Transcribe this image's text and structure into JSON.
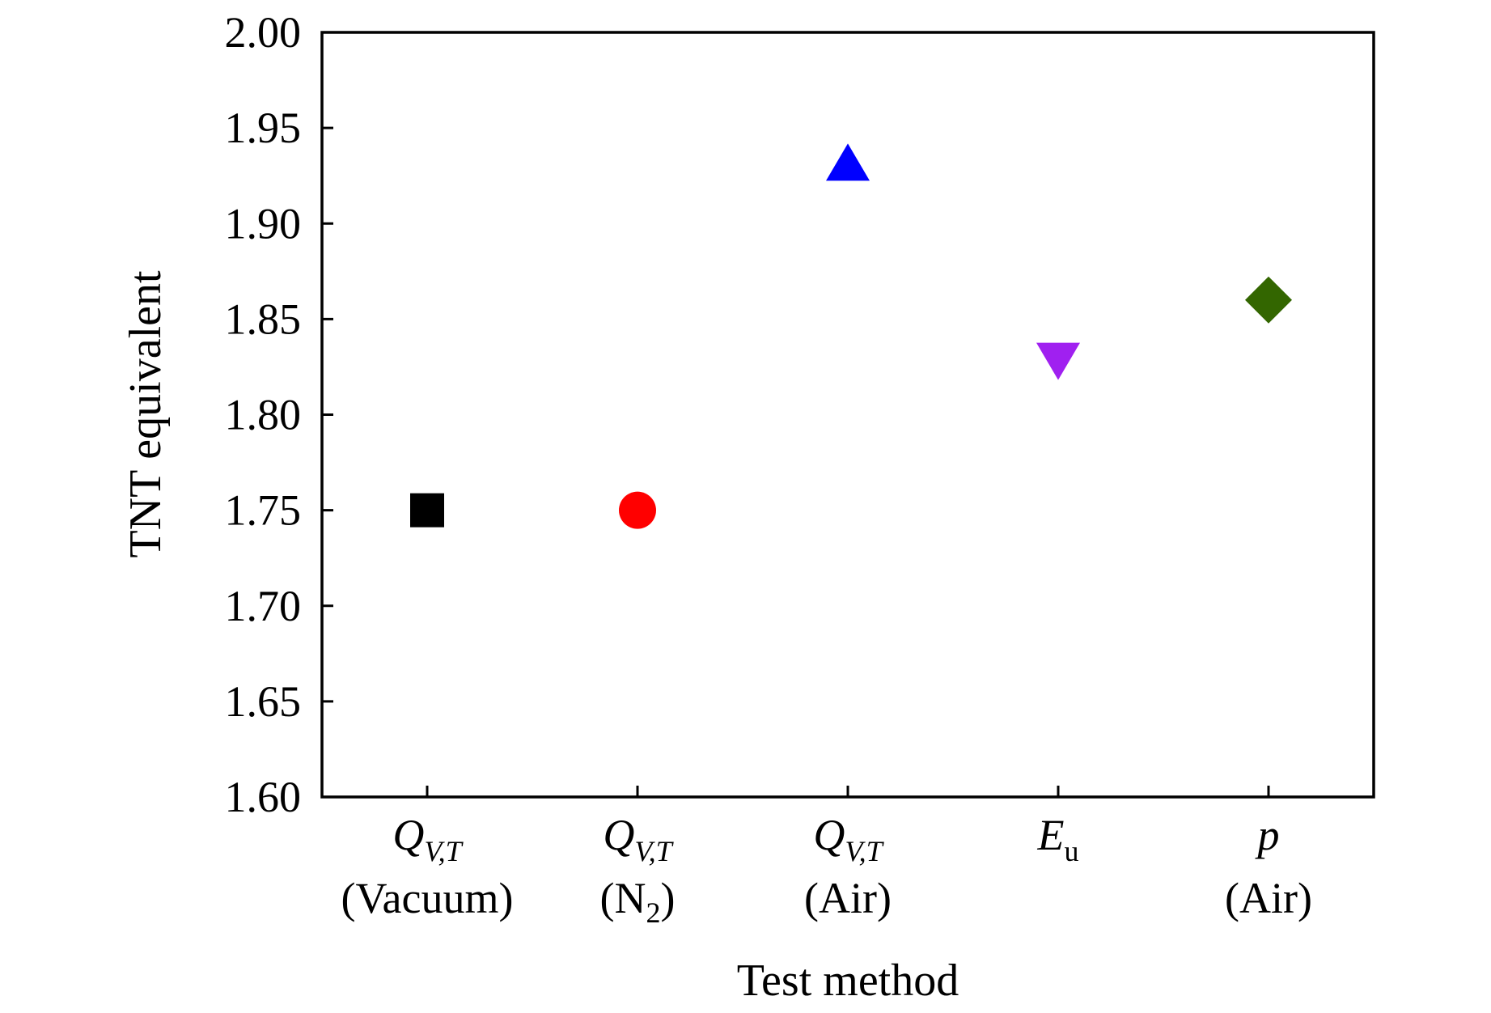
{
  "chart_data": {
    "type": "scatter",
    "title": "",
    "xlabel": "Test method",
    "ylabel": "TNT equivalent",
    "ylim": [
      1.6,
      2.0
    ],
    "yticks": [
      "1.60",
      "1.65",
      "1.70",
      "1.75",
      "1.80",
      "1.85",
      "1.90",
      "1.95",
      "2.00"
    ],
    "grid": false,
    "legend": "none",
    "categories": [
      {
        "main": "Q",
        "sub": "V,T",
        "sub_italic": true,
        "line2": "(Vacuum)",
        "line2_pre": "",
        "line2_sub": "",
        "line2_post": ""
      },
      {
        "main": "Q",
        "sub": "V,T",
        "sub_italic": true,
        "line2": "",
        "line2_pre": "(N",
        "line2_sub": "2",
        "line2_post": ")"
      },
      {
        "main": "Q",
        "sub": "V,T",
        "sub_italic": true,
        "line2": "(Air)",
        "line2_pre": "",
        "line2_sub": "",
        "line2_post": ""
      },
      {
        "main": "E",
        "sub": "u",
        "sub_italic": false,
        "line2": "",
        "line2_pre": "",
        "line2_sub": "",
        "line2_post": ""
      },
      {
        "main": "p",
        "sub": "",
        "sub_italic": false,
        "line2": "(Air)",
        "line2_pre": "",
        "line2_sub": "",
        "line2_post": ""
      }
    ],
    "points": [
      {
        "value": 1.75,
        "marker": "square",
        "color": "#000000"
      },
      {
        "value": 1.75,
        "marker": "circle",
        "color": "#ff0000"
      },
      {
        "value": 1.93,
        "marker": "triangle-up",
        "color": "#0000ff"
      },
      {
        "value": 1.83,
        "marker": "triangle-down",
        "color": "#a020f0"
      },
      {
        "value": 1.86,
        "marker": "diamond",
        "color": "#336600"
      }
    ]
  }
}
